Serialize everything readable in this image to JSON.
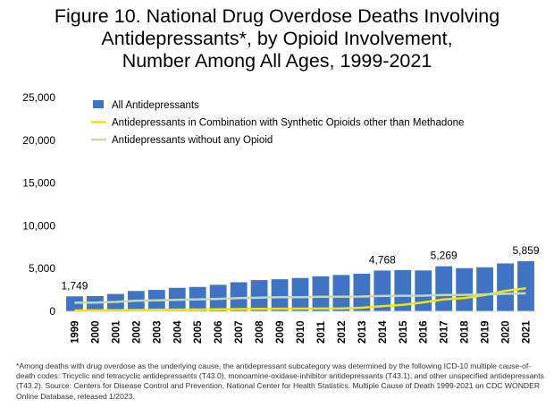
{
  "title_lines": [
    "Figure 10. National Drug Overdose Deaths Involving",
    "Antidepressants*, by Opioid Involvement,",
    "Number Among All Ages, 1999-2021"
  ],
  "footnote": "*Among deaths with drug overdose as the underlying cause, the antidepressant subcategory was determined by the following ICD-10 multiple cause-of-death codes: Tricyclic and tetracyclic antidepressants (T43.0), monoamine-oxidase-inhibitor antidepressants (T43.1), and other unspecified antidepressants (T43.2). Source: Centers for Disease Control and Prevention, National Center for Health Statistics. Multiple Cause of Death 1999-2021 on CDC WONDER Online Database, released 1/2023.",
  "chart_data": {
    "type": "bar",
    "categories": [
      "1999",
      "2000",
      "2001",
      "2002",
      "2003",
      "2004",
      "2005",
      "2006",
      "2007",
      "2008",
      "2009",
      "2010",
      "2011",
      "2012",
      "2013",
      "2014",
      "2015",
      "2016",
      "2017",
      "2018",
      "2019",
      "2020",
      "2021"
    ],
    "ylim": [
      0,
      25000
    ],
    "yticks": [
      "0",
      "5,000",
      "10,000",
      "15,000",
      "20,000",
      "25,000"
    ],
    "ytick_values": [
      0,
      5000,
      10000,
      15000,
      20000,
      25000
    ],
    "legend_position": "top-left",
    "grid": false,
    "series": [
      {
        "name": "All Antidepressants",
        "kind": "bar",
        "color": "#3f73c4",
        "values": [
          1749,
          1780,
          2030,
          2380,
          2500,
          2750,
          2850,
          3100,
          3400,
          3650,
          3750,
          3900,
          4100,
          4250,
          4400,
          4768,
          4820,
          4780,
          5269,
          5050,
          5150,
          5600,
          5859
        ]
      },
      {
        "name": "Antidepressants in Combination with Synthetic Opioids other than Methadone",
        "kind": "line",
        "color": "#f2e600",
        "values": [
          100,
          120,
          140,
          160,
          190,
          200,
          210,
          240,
          260,
          290,
          300,
          310,
          320,
          330,
          420,
          600,
          750,
          1050,
          1400,
          1550,
          1900,
          2400,
          2700
        ]
      },
      {
        "name": "Antidepressants without any Opioid",
        "kind": "line",
        "color": "#c5d9b0",
        "values": [
          1000,
          1020,
          1100,
          1250,
          1280,
          1350,
          1400,
          1450,
          1550,
          1600,
          1650,
          1650,
          1700,
          1720,
          1730,
          1800,
          1820,
          1830,
          1900,
          1920,
          1980,
          2050,
          2100
        ]
      }
    ],
    "data_labels": [
      {
        "category": "1999",
        "text": "1,749"
      },
      {
        "category": "2014",
        "text": "4,768"
      },
      {
        "category": "2017",
        "text": "5,269"
      },
      {
        "category": "2021",
        "text": "5,859"
      }
    ]
  }
}
